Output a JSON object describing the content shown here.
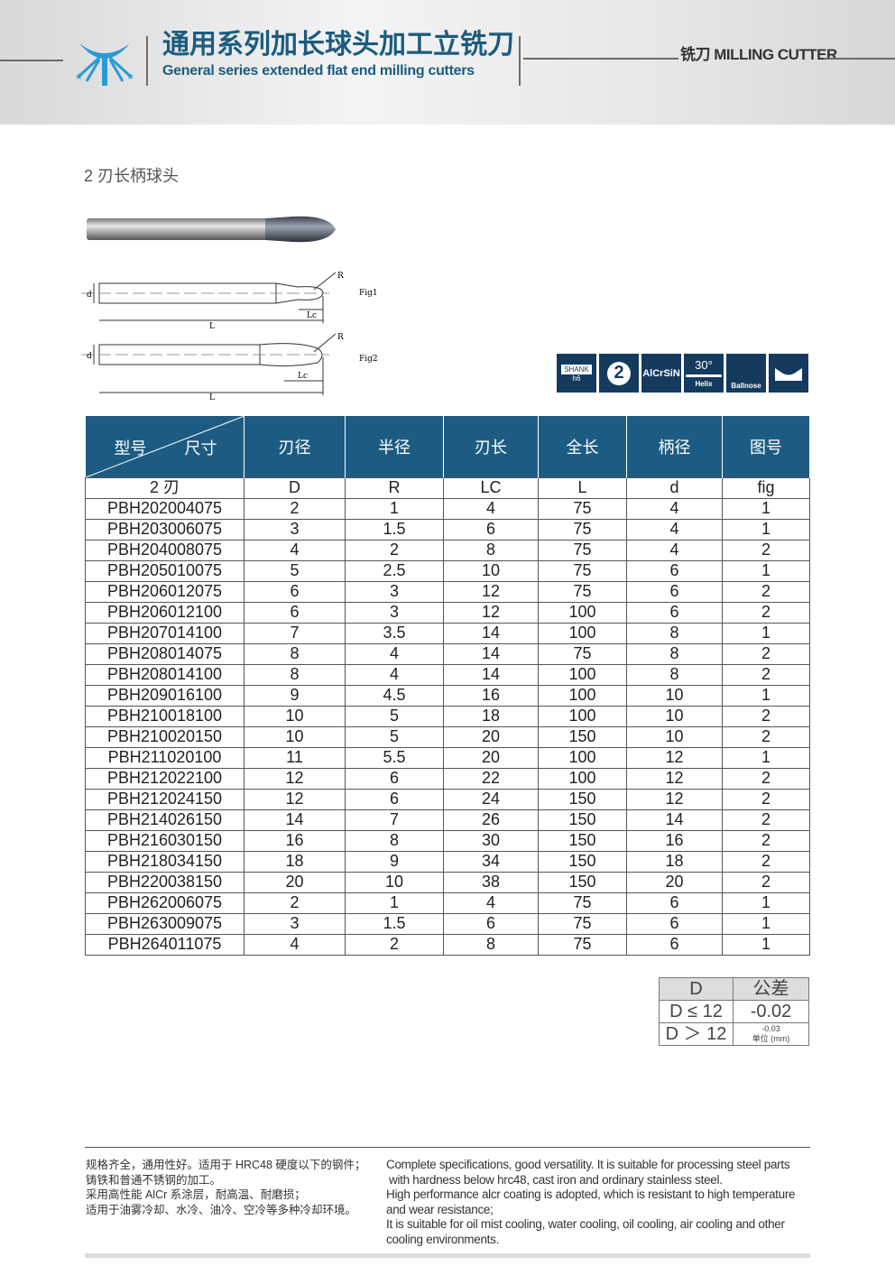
{
  "header": {
    "title_cn": "通用系列加长球头加工立铣刀",
    "title_en": "General series extended flat end milling cutters",
    "category": "铣刀 MILLING CUTTER",
    "brand_color": "#1b5c80"
  },
  "section_title": "2 刃长柄球头",
  "drawing": {
    "fig1": "Fig1",
    "fig2": "Fig2",
    "d": "d",
    "L": "L",
    "Lc": "Lc",
    "R": "R"
  },
  "feature_icons": [
    {
      "label": "SHANK",
      "sub": "h6",
      "icon": "shank-icon"
    },
    {
      "label": "2",
      "icon": "two-flute-icon"
    },
    {
      "label": "AlCrSiN",
      "icon": "coating-icon"
    },
    {
      "label": "30°",
      "sub": "Helix",
      "icon": "helix-icon"
    },
    {
      "label": "Ballnose",
      "icon": "ballnose-icon"
    },
    {
      "label": "",
      "icon": "wave-end-icon"
    }
  ],
  "table": {
    "header_left_top": "尺寸",
    "header_left_bottom": "型号",
    "headers": [
      "刃径",
      "半径",
      "刃长",
      "全长",
      "柄径",
      "图号"
    ],
    "subheader": [
      "2 刃",
      "D",
      "R",
      "LC",
      "L",
      "d",
      "fig"
    ],
    "rows": [
      [
        "PBH202004075",
        "2",
        "1",
        "4",
        "75",
        "4",
        "1"
      ],
      [
        "PBH203006075",
        "3",
        "1.5",
        "6",
        "75",
        "4",
        "1"
      ],
      [
        "PBH204008075",
        "4",
        "2",
        "8",
        "75",
        "4",
        "2"
      ],
      [
        "PBH205010075",
        "5",
        "2.5",
        "10",
        "75",
        "6",
        "1"
      ],
      [
        "PBH206012075",
        "6",
        "3",
        "12",
        "75",
        "6",
        "2"
      ],
      [
        "PBH206012100",
        "6",
        "3",
        "12",
        "100",
        "6",
        "2"
      ],
      [
        "PBH207014100",
        "7",
        "3.5",
        "14",
        "100",
        "8",
        "1"
      ],
      [
        "PBH208014075",
        "8",
        "4",
        "14",
        "75",
        "8",
        "2"
      ],
      [
        "PBH208014100",
        "8",
        "4",
        "14",
        "100",
        "8",
        "2"
      ],
      [
        "PBH209016100",
        "9",
        "4.5",
        "16",
        "100",
        "10",
        "1"
      ],
      [
        "PBH210018100",
        "10",
        "5",
        "18",
        "100",
        "10",
        "2"
      ],
      [
        "PBH210020150",
        "10",
        "5",
        "20",
        "150",
        "10",
        "2"
      ],
      [
        "PBH211020100",
        "11",
        "5.5",
        "20",
        "100",
        "12",
        "1"
      ],
      [
        "PBH212022100",
        "12",
        "6",
        "22",
        "100",
        "12",
        "2"
      ],
      [
        "PBH212024150",
        "12",
        "6",
        "24",
        "150",
        "12",
        "2"
      ],
      [
        "PBH214026150",
        "14",
        "7",
        "26",
        "150",
        "14",
        "2"
      ],
      [
        "PBH216030150",
        "16",
        "8",
        "30",
        "150",
        "16",
        "2"
      ],
      [
        "PBH218034150",
        "18",
        "9",
        "34",
        "150",
        "18",
        "2"
      ],
      [
        "PBH220038150",
        "20",
        "10",
        "38",
        "150",
        "20",
        "2"
      ],
      [
        "PBH262006075",
        "2",
        "1",
        "4",
        "75",
        "6",
        "1"
      ],
      [
        "PBH263009075",
        "3",
        "1.5",
        "6",
        "75",
        "6",
        "1"
      ],
      [
        "PBH264011075",
        "4",
        "2",
        "8",
        "75",
        "6",
        "1"
      ]
    ]
  },
  "tolerance": {
    "h1": "D",
    "h2": "公差",
    "r1c1": "D ≤ 12",
    "r1c2": "-0.02",
    "r2c1": "D ＞ 12",
    "r2c2": "-0.03",
    "unit": "单位 (mm)"
  },
  "footer": {
    "cn": [
      "规格齐全，通用性好。适用于 HRC48 硬度以下的钢件；",
      "铸铁和普通不锈钢的加工。",
      "采用高性能 AlCr 系涂层，耐高温、耐磨损；",
      "适用于油雾冷却、水冷、油冷、空冷等多种冷却环境。"
    ],
    "en": [
      "Complete specifications, good versatility. It is suitable for processing steel parts",
      "with hardness below hrc48, cast iron and ordinary stainless steel.",
      "High performance alcr coating is adopted, which is resistant to high temperature",
      "and wear resistance;",
      "It is suitable for oil mist cooling, water cooling, oil cooling, air cooling and other",
      "cooling environments."
    ]
  }
}
